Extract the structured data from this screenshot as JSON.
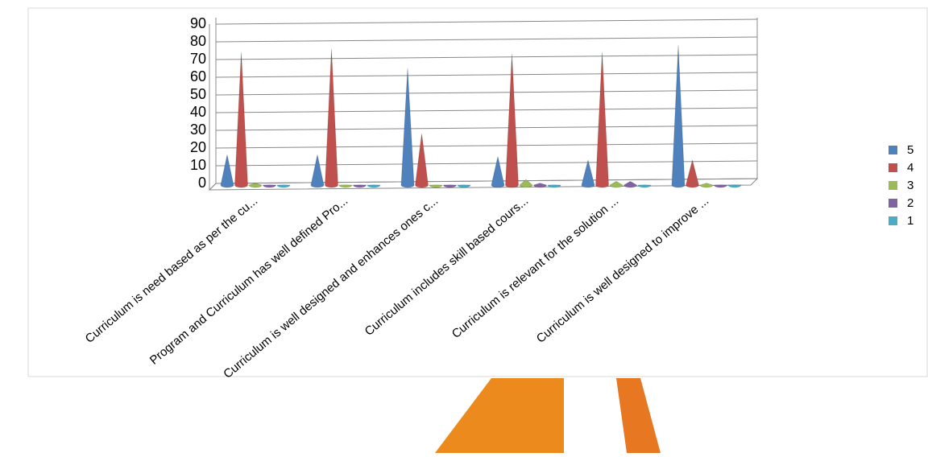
{
  "chart_data": {
    "type": "cone",
    "categories": [
      "Curriculum is need based as per the cu...",
      "Program and Curriculum has well defined Pro...",
      "Curriculum is well designed and enhances ones c...",
      "Curriculum includes skill based cours...",
      "Curriculum is relevant for the solution ...",
      "Curriculum is well designed to improve ..."
    ],
    "series": [
      {
        "name": "5",
        "color": "#4f81bd",
        "values": [
          18,
          18,
          67,
          17,
          15,
          80
        ]
      },
      {
        "name": "4",
        "color": "#c0504d",
        "values": [
          76,
          78,
          30,
          75,
          76,
          15
        ]
      },
      {
        "name": "3",
        "color": "#9bbb59",
        "values": [
          2,
          1,
          1,
          4,
          3,
          2
        ]
      },
      {
        "name": "2",
        "color": "#8064a2",
        "values": [
          1,
          1,
          1,
          2,
          3,
          1
        ]
      },
      {
        "name": "1",
        "color": "#4bacc6",
        "values": [
          1,
          1,
          1,
          1,
          1,
          1
        ]
      }
    ],
    "ylim": [
      0,
      90
    ],
    "yticks": [
      0,
      10,
      20,
      30,
      40,
      50,
      60,
      70,
      80,
      90
    ],
    "grid": true
  }
}
